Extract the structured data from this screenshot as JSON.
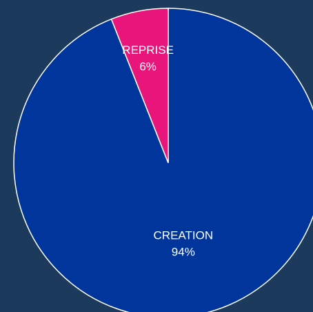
{
  "background_color": "#1c3a5c",
  "chart_data": {
    "type": "pie",
    "title": "",
    "slices": [
      {
        "label": "CREATION",
        "value": 94,
        "value_label": "94%",
        "color": "#00369c"
      },
      {
        "label": "REPRISE",
        "value": 6,
        "value_label": "6%",
        "color": "#e8167a"
      }
    ],
    "slice_border_color": "#ffffff",
    "start": "12 o'clock",
    "direction": "clockwise",
    "legend": "none"
  }
}
